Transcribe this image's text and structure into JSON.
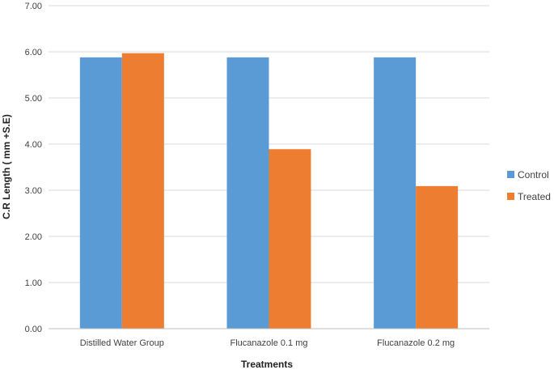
{
  "chart_data": {
    "type": "bar",
    "title": "",
    "xlabel": "Treatments",
    "ylabel": "C.R Length ( mm +S.E)",
    "categories": [
      "Distilled Water Group",
      "Flucanazole 0.1 mg",
      "Flucanazole 0.2 mg"
    ],
    "series": [
      {
        "name": "Control",
        "values": [
          5.88,
          5.88,
          5.88
        ],
        "color": "#5B9BD5"
      },
      {
        "name": "Treated",
        "values": [
          5.97,
          3.89,
          3.09
        ],
        "color": "#ED7D31"
      }
    ],
    "ylim": [
      0,
      7
    ],
    "yticks": [
      "0.00",
      "1.00",
      "2.00",
      "3.00",
      "4.00",
      "5.00",
      "6.00",
      "7.00"
    ],
    "grid": true,
    "legend_position": "right"
  }
}
